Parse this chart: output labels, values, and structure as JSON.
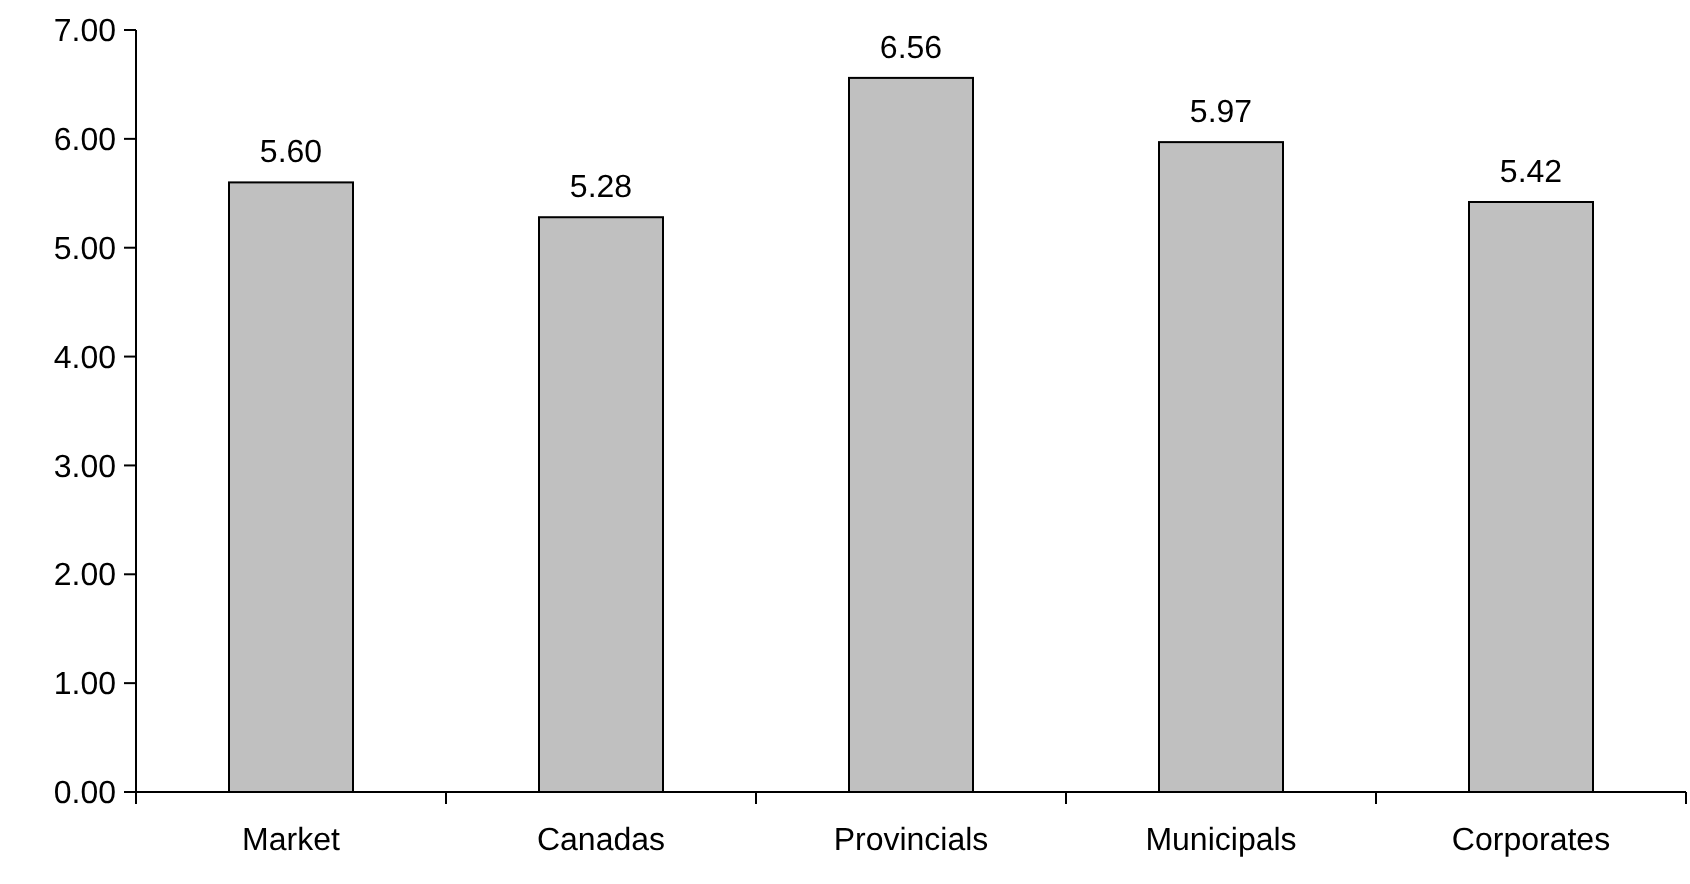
{
  "chart_data": {
    "type": "bar",
    "categories": [
      "Market",
      "Canadas",
      "Provincials",
      "Municipals",
      "Corporates"
    ],
    "values": [
      5.6,
      5.28,
      6.56,
      5.97,
      5.42
    ],
    "value_labels": [
      "5.60",
      "5.28",
      "6.56",
      "5.97",
      "5.42"
    ],
    "color": "#c0c0c0",
    "ylim": [
      0,
      7
    ],
    "yticks": [
      {
        "value": 0,
        "label": "0.00"
      },
      {
        "value": 1,
        "label": "1.00"
      },
      {
        "value": 2,
        "label": "2.00"
      },
      {
        "value": 3,
        "label": "3.00"
      },
      {
        "value": 4,
        "label": "4.00"
      },
      {
        "value": 5,
        "label": "5.00"
      },
      {
        "value": 6,
        "label": "6.00"
      },
      {
        "value": 7,
        "label": "7.00"
      }
    ],
    "grid": false
  }
}
